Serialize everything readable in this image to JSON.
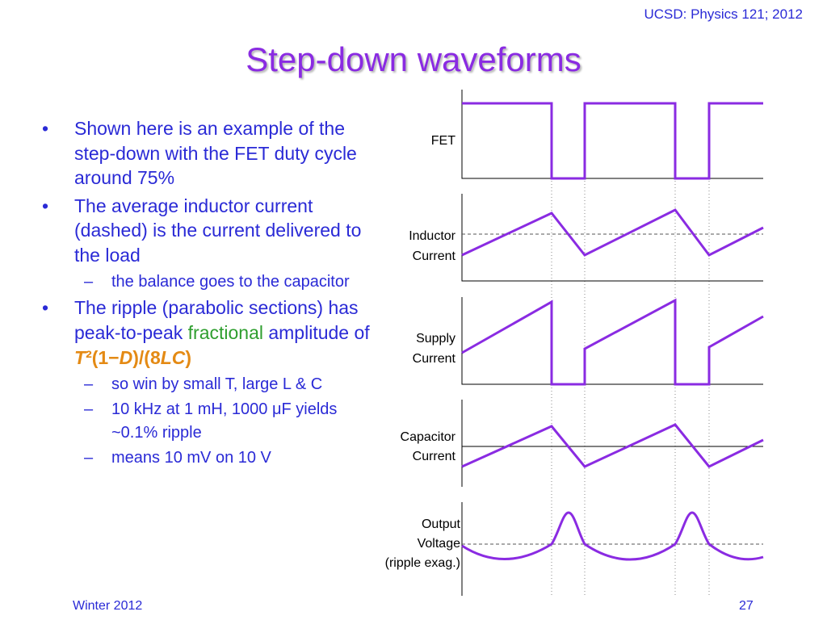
{
  "header": {
    "course": "UCSD: Physics 121; 2012"
  },
  "title": "Step-down waveforms",
  "bullets": [
    {
      "text": "Shown here is an example of the step-down with the FET duty cycle around 75%"
    },
    {
      "text": "The average inductor current (dashed) is the current delivered to the load"
    },
    {
      "sub": "the balance goes to the capacitor"
    },
    {
      "text_pre": "The ripple (parabolic sections) has peak-to-peak ",
      "highlight": "fractional",
      "text_mid": " amplitude of ",
      "formula": {
        "T": "T",
        "sq": "²",
        "open": "(1−",
        "D": "D",
        "mid": ")/(8",
        "LC": "LC",
        "close": ")"
      }
    },
    {
      "sub": "so win by small T, large L & C"
    },
    {
      "sub_pre": "10 kHz at 1 mH, 1000 ",
      "mu": "μ",
      "sub_post": "F yields ~0.1% ripple"
    },
    {
      "sub": "means 10 mV on 10 V"
    }
  ],
  "bullet_mark": "•",
  "dash_mark": "–",
  "waveforms": {
    "labels": {
      "fet": "FET",
      "inductor_1": "Inductor",
      "inductor_2": "Current",
      "supply_1": "Supply",
      "supply_2": "Current",
      "capacitor_1": "Capacitor",
      "capacitor_2": "Current",
      "output_1": "Output",
      "output_2": "Voltage",
      "output_3": "(ripple exag.)"
    },
    "duty_cycle_percent": 75,
    "colors": {
      "trace": "#8a2be2",
      "axis": "#000000",
      "dashed": "#555555"
    }
  },
  "footer": {
    "left": "Winter 2012",
    "page": "27"
  }
}
